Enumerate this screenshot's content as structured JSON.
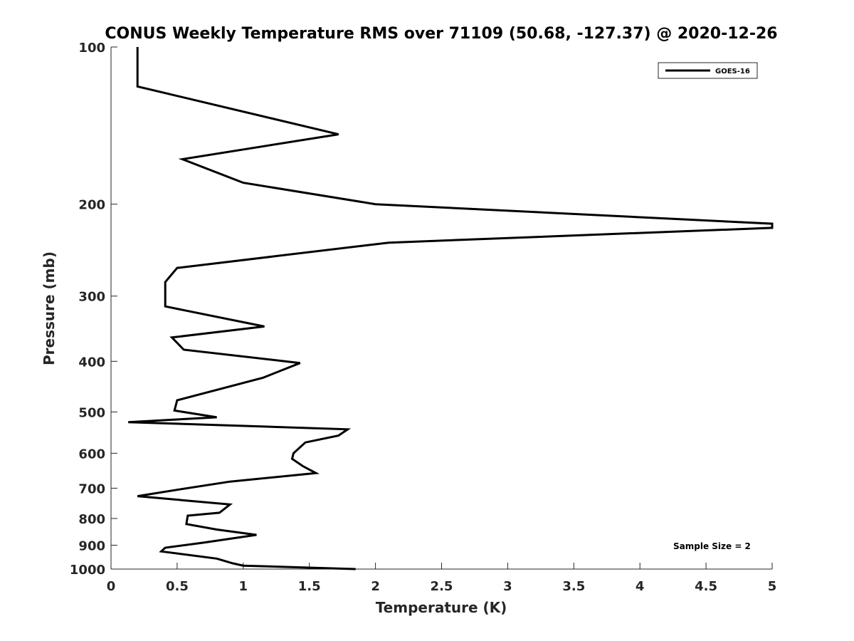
{
  "chart_data": {
    "type": "line",
    "title": "CONUS Weekly Temperature RMS over 71109 (50.68, -127.37) @ 2020-12-26",
    "xlabel": "Temperature (K)",
    "ylabel": "Pressure (mb)",
    "xlim": [
      0,
      5
    ],
    "ylim": [
      100,
      1000
    ],
    "yscale": "log",
    "y_reversed": true,
    "grid": false,
    "legend_position": "top-right",
    "x_ticks": [
      "0",
      "0.5",
      "1",
      "1.5",
      "2",
      "2.5",
      "3",
      "3.5",
      "4",
      "4.5",
      "5"
    ],
    "y_ticks": [
      "100",
      "200",
      "300",
      "400",
      "500",
      "600",
      "700",
      "800",
      "900",
      "1000"
    ],
    "annotation": "Sample Size = 2",
    "series": [
      {
        "name": "GOES-16",
        "color": "#000000",
        "x": [
          0.2,
          0.2,
          1.72,
          0.54,
          1.0,
          2.0,
          5.0,
          5.0,
          2.1,
          0.5,
          0.41,
          0.41,
          0.41,
          1.16,
          0.46,
          0.55,
          1.43,
          1.15,
          0.5,
          0.48,
          0.8,
          0.13,
          1.79,
          1.72,
          1.47,
          1.38,
          1.37,
          1.45,
          1.55,
          0.9,
          0.5,
          0.2,
          0.9,
          0.82,
          0.58,
          0.57,
          0.8,
          1.1,
          0.7,
          0.41,
          0.38,
          0.8,
          0.92,
          1.0,
          1.85
        ],
        "y": [
          100,
          119,
          147,
          164,
          182,
          200,
          218,
          222,
          237,
          265,
          282,
          297,
          314,
          343,
          360,
          380,
          403,
          430,
          475,
          497,
          512,
          523,
          540,
          555,
          572,
          600,
          615,
          635,
          655,
          680,
          705,
          725,
          752,
          780,
          790,
          820,
          840,
          860,
          890,
          910,
          925,
          955,
          975,
          985,
          1000
        ]
      }
    ]
  }
}
